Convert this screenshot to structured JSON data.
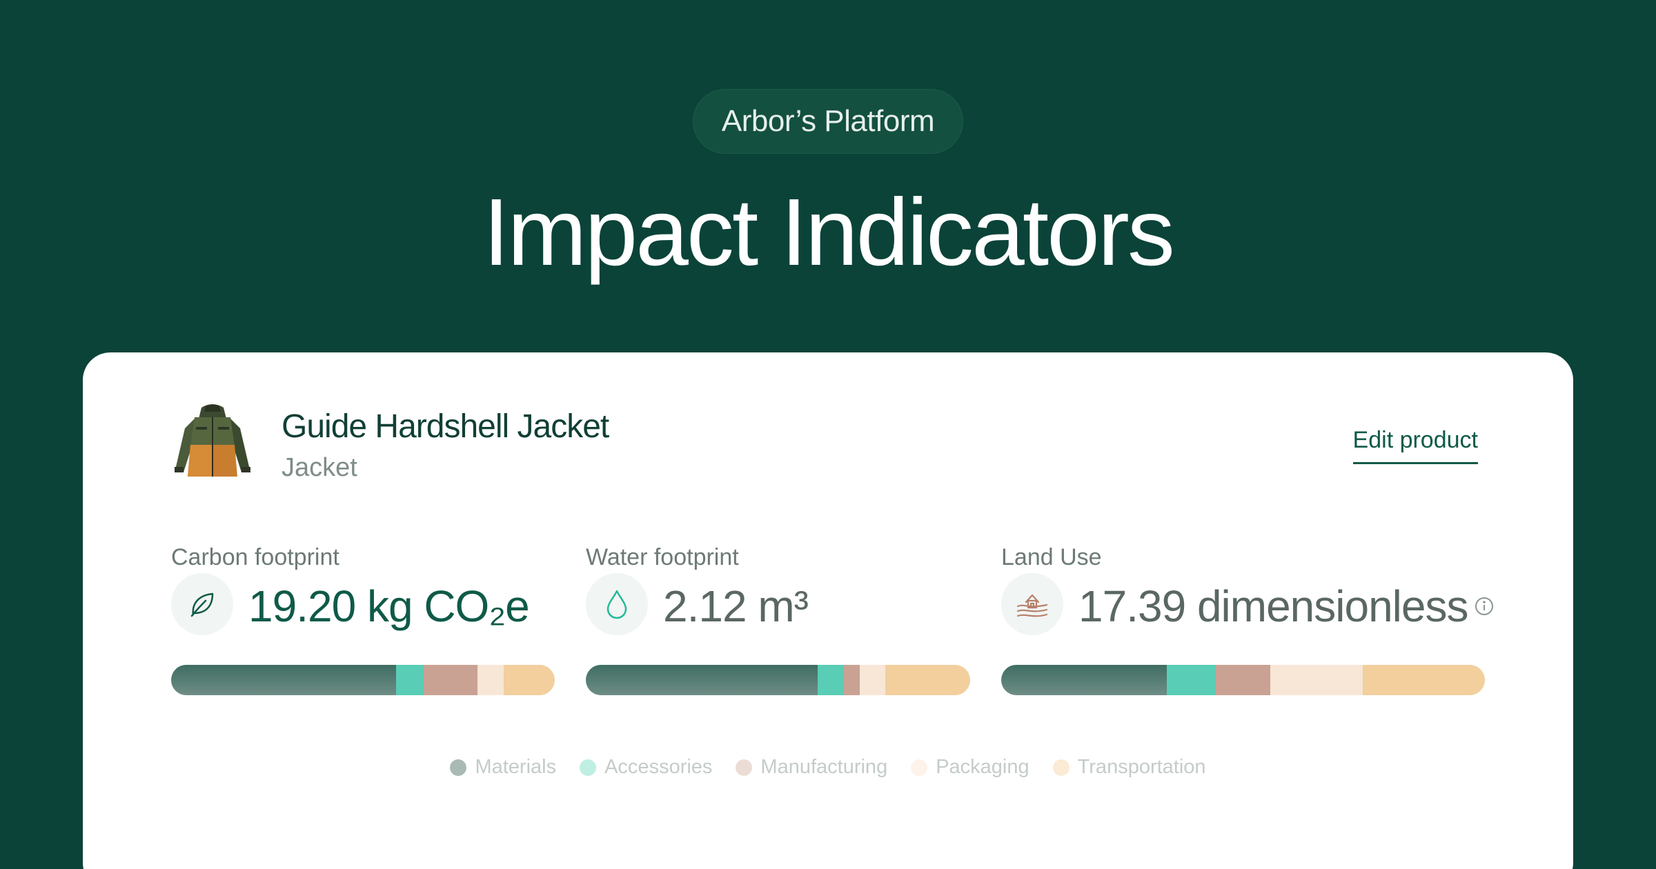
{
  "header": {
    "badge": "Arbor’s Platform",
    "title": "Impact Indicators"
  },
  "product": {
    "name": "Guide Hardshell Jacket",
    "type": "Jacket",
    "image_icon": "jacket-icon",
    "edit_label": "Edit product"
  },
  "metrics": [
    {
      "label": "Carbon footprint",
      "icon": "leaf-icon",
      "value": "19.20 kg CO₂e",
      "breakdown": [
        0.587,
        0.072,
        0.14,
        0.068,
        0.133
      ]
    },
    {
      "label": "Water footprint",
      "icon": "water-drop-icon",
      "value": "2.12 m³",
      "breakdown": [
        0.603,
        0.068,
        0.042,
        0.066,
        0.221
      ]
    },
    {
      "label": "Land Use",
      "icon": "farm-land-icon",
      "value": "17.39 dimensionless",
      "info_icon": "info-icon",
      "breakdown": [
        0.343,
        0.101,
        0.113,
        0.19,
        0.253
      ]
    }
  ],
  "legend": [
    {
      "label": "Materials",
      "color": "#a9bab5"
    },
    {
      "label": "Accessories",
      "color": "#bfeee3"
    },
    {
      "label": "Manufacturing",
      "color": "#ecdcd6"
    },
    {
      "label": "Packaging",
      "color": "#fdf3ea"
    },
    {
      "label": "Transportation",
      "color": "#fbebd5"
    }
  ],
  "colors": {
    "background": "#0b4338",
    "accent": "#0f5a48",
    "materials": "#3f6d63",
    "accessories": "#59cdb5",
    "manufacturing": "#c9a293",
    "packaging": "#f8e6d6",
    "transportation": "#f2cf9d"
  }
}
